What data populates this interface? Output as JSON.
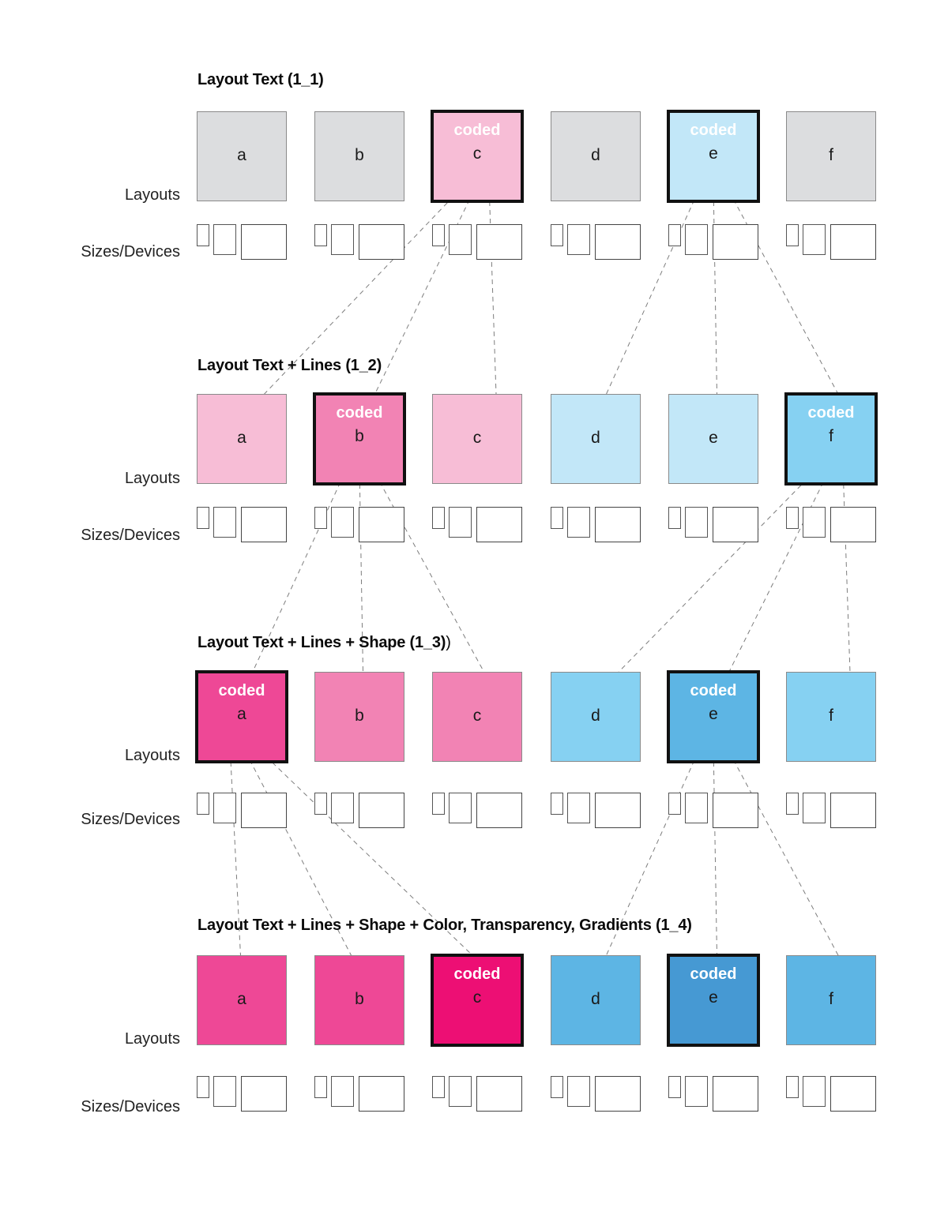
{
  "row_labels": {
    "layouts": "Layouts",
    "sizes": "Sizes/Devices"
  },
  "coded_label": "coded",
  "colors": {
    "grey": "#dcdddf",
    "pink_light": "#f7bdd6",
    "pink_mid": "#f283b4",
    "pink_strong": "#ee4896",
    "pink_deep": "#ed0f74",
    "blue_light": "#c2e7f8",
    "blue_mid": "#86d1f2",
    "blue_strong": "#5db5e4",
    "blue_deep": "#4699d3"
  },
  "sections": [
    {
      "title": "Layout Text (1_1)",
      "title_extra": "",
      "layouts": [
        {
          "letter": "a",
          "color": "#dcdddf",
          "coded": false
        },
        {
          "letter": "b",
          "color": "#dcdddf",
          "coded": false
        },
        {
          "letter": "c",
          "color": "#f7bdd6",
          "coded": true
        },
        {
          "letter": "d",
          "color": "#dcdddf",
          "coded": false
        },
        {
          "letter": "e",
          "color": "#c2e7f8",
          "coded": true
        },
        {
          "letter": "f",
          "color": "#dcdddf",
          "coded": false
        }
      ]
    },
    {
      "title": "Layout Text + Lines (1_2)",
      "title_extra": "",
      "layouts": [
        {
          "letter": "a",
          "color": "#f7bdd6",
          "coded": false
        },
        {
          "letter": "b",
          "color": "#f283b4",
          "coded": true
        },
        {
          "letter": "c",
          "color": "#f7bdd6",
          "coded": false
        },
        {
          "letter": "d",
          "color": "#c2e7f8",
          "coded": false
        },
        {
          "letter": "e",
          "color": "#c2e7f8",
          "coded": false
        },
        {
          "letter": "f",
          "color": "#86d1f2",
          "coded": true
        }
      ]
    },
    {
      "title": "Layout Text + Lines + Shape (1_3)",
      "title_extra": ")",
      "layouts": [
        {
          "letter": "a",
          "color": "#ee4896",
          "coded": true
        },
        {
          "letter": "b",
          "color": "#f283b4",
          "coded": false
        },
        {
          "letter": "c",
          "color": "#f283b4",
          "coded": false
        },
        {
          "letter": "d",
          "color": "#86d1f2",
          "coded": false
        },
        {
          "letter": "e",
          "color": "#5db5e4",
          "coded": true
        },
        {
          "letter": "f",
          "color": "#86d1f2",
          "coded": false
        }
      ]
    },
    {
      "title": "Layout Text + Lines + Shape + Color, Transparency, Gradients (1_4)",
      "title_extra": "",
      "layouts": [
        {
          "letter": "a",
          "color": "#ee4896",
          "coded": false
        },
        {
          "letter": "b",
          "color": "#ee4896",
          "coded": false
        },
        {
          "letter": "c",
          "color": "#ed0f74",
          "coded": true
        },
        {
          "letter": "d",
          "color": "#5db5e4",
          "coded": false
        },
        {
          "letter": "e",
          "color": "#4699d3",
          "coded": true
        },
        {
          "letter": "f",
          "color": "#5db5e4",
          "coded": false
        }
      ]
    }
  ],
  "connections": [
    {
      "from": "1_1.c",
      "to": [
        "1_2.a",
        "1_2.b",
        "1_2.c"
      ]
    },
    {
      "from": "1_1.e",
      "to": [
        "1_2.d",
        "1_2.e",
        "1_2.f"
      ]
    },
    {
      "from": "1_2.b",
      "to": [
        "1_3.a",
        "1_3.b",
        "1_3.c"
      ]
    },
    {
      "from": "1_2.f",
      "to": [
        "1_3.d",
        "1_3.e",
        "1_3.f"
      ]
    },
    {
      "from": "1_3.a",
      "to": [
        "1_4.a",
        "1_4.b",
        "1_4.c"
      ]
    },
    {
      "from": "1_3.e",
      "to": [
        "1_4.d",
        "1_4.e",
        "1_4.f"
      ]
    }
  ]
}
